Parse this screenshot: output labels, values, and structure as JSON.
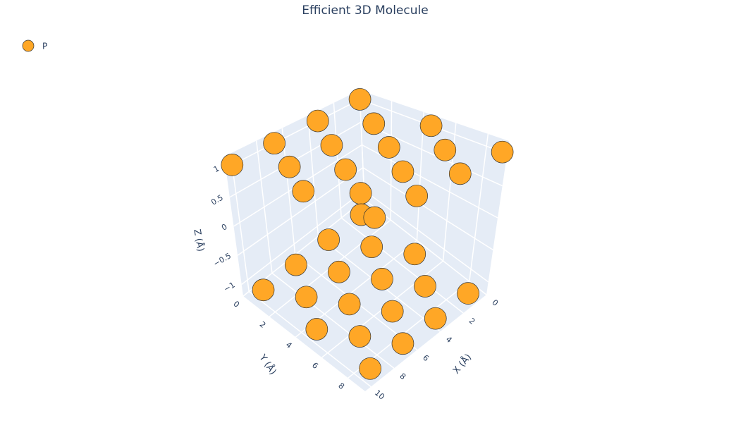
{
  "chart_data": {
    "type": "scatter3d",
    "title": "Efficient 3D Molecule",
    "xlabel": "X (Å)",
    "ylabel": "Y (Å)",
    "zlabel": "Z (Å)",
    "xlim": [
      0,
      10.5
    ],
    "ylim": [
      0,
      9.3
    ],
    "zlim": [
      -1.2,
      1.2
    ],
    "xticks": [
      0,
      2,
      4,
      6,
      8,
      10
    ],
    "yticks": [
      0,
      2,
      4,
      6,
      8
    ],
    "zticks": [
      {
        "value": -1,
        "label": "−1"
      },
      {
        "value": -0.5,
        "label": "−0.5"
      },
      0,
      0.5,
      1
    ],
    "grid": true,
    "legend": "top-left",
    "series": [
      {
        "name": "P",
        "color": "#FFA726",
        "x": [
          10,
          6.7,
          3.3,
          0,
          8.3,
          5,
          1.7,
          10,
          6.7,
          3.3,
          0,
          8.3,
          5,
          1.7,
          10,
          6.7,
          3.3,
          0,
          9.9,
          7.1,
          4.3,
          1.5,
          8.5,
          5.7,
          2.9,
          9.9,
          7.1,
          4.3,
          1.5,
          8.5,
          5.7,
          2.9,
          9.9,
          7.1,
          4.3,
          1.5
        ],
        "y": [
          0,
          0,
          0,
          0,
          2.25,
          2.25,
          2.25,
          4.5,
          4.5,
          4.5,
          4.5,
          6.75,
          6.75,
          6.75,
          9,
          9,
          9,
          9,
          1.1,
          1.1,
          1.1,
          1.1,
          3.1,
          3.1,
          3.1,
          5.1,
          5.1,
          5.1,
          5.1,
          7.1,
          7.1,
          7.1,
          9.1,
          9.1,
          9.1,
          9.1
        ],
        "z": [
          1,
          1,
          1,
          1,
          1,
          1,
          1,
          1,
          1,
          1,
          1,
          1,
          1,
          1,
          1,
          1,
          1,
          1,
          -1,
          -1,
          -1,
          -1,
          -1,
          -1,
          -1,
          -1,
          -1,
          -1,
          -1,
          -1,
          -1,
          -1,
          -1,
          -1,
          -1,
          -1
        ]
      }
    ]
  }
}
